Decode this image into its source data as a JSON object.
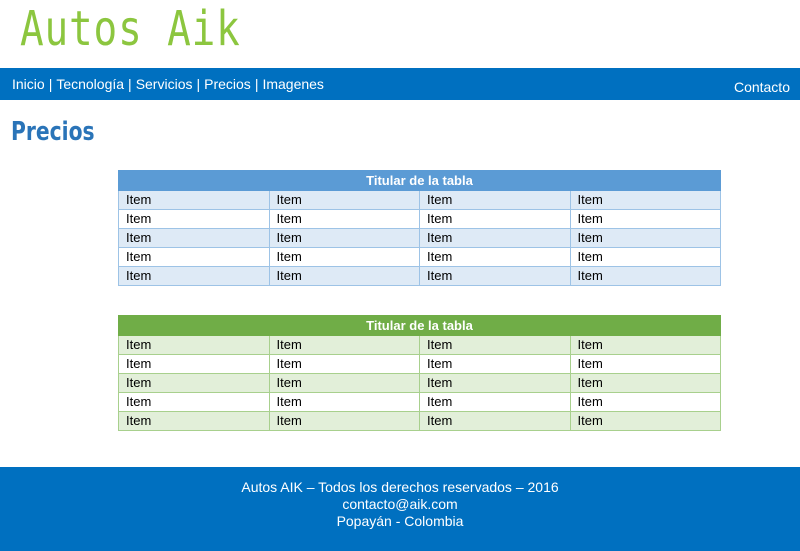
{
  "site": {
    "title": "Autos Aik"
  },
  "nav": {
    "links": [
      "Inicio",
      "Tecnología",
      "Servicios",
      "Precios",
      "Imagenes"
    ],
    "separator": "|",
    "contact": "Contacto"
  },
  "page": {
    "heading": "Precios"
  },
  "tables": [
    {
      "caption": "Titular de la tabla",
      "rows": [
        [
          "Item",
          "Item",
          "Item",
          "Item"
        ],
        [
          "Item",
          "Item",
          "Item",
          "Item"
        ],
        [
          "Item",
          "Item",
          "Item",
          "Item"
        ],
        [
          "Item",
          "Item",
          "Item",
          "Item"
        ],
        [
          "Item",
          "Item",
          "Item",
          "Item"
        ]
      ]
    },
    {
      "caption": "Titular de la tabla",
      "rows": [
        [
          "Item",
          "Item",
          "Item",
          "Item"
        ],
        [
          "Item",
          "Item",
          "Item",
          "Item"
        ],
        [
          "Item",
          "Item",
          "Item",
          "Item"
        ],
        [
          "Item",
          "Item",
          "Item",
          "Item"
        ],
        [
          "Item",
          "Item",
          "Item",
          "Item"
        ]
      ]
    }
  ],
  "footer": {
    "line1": "Autos AIK – Todos los derechos reservados – 2016",
    "line2": "contacto@aik.com",
    "line3": "Popayán - Colombia"
  },
  "colors": {
    "brand_green": "#8cc63f",
    "nav_blue": "#0070c0",
    "heading_blue": "#2a74b8",
    "table1_header": "#5b9bd5",
    "table1_band": "#deeaf6",
    "table2_header": "#70ad47",
    "table2_band": "#e2efd9"
  }
}
